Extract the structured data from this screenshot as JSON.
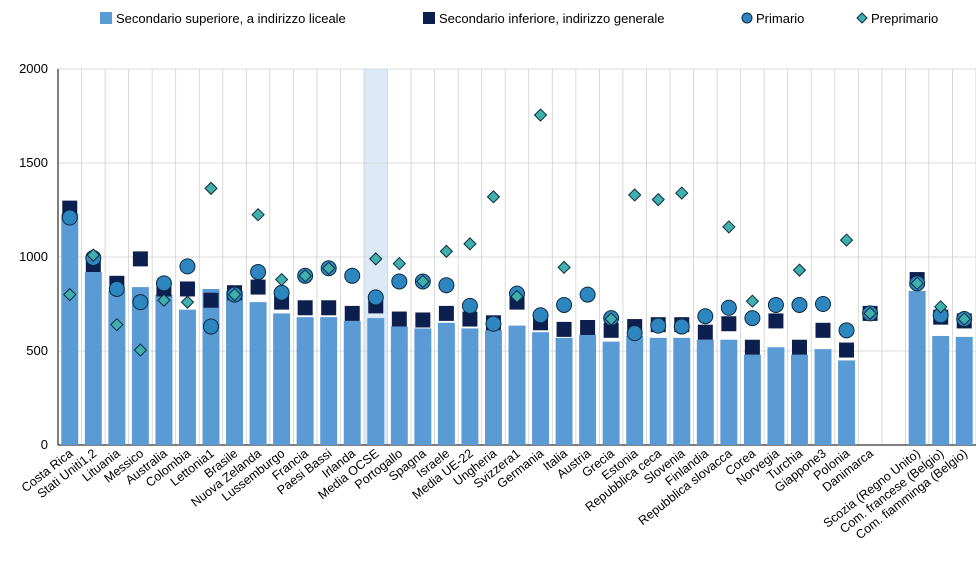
{
  "chart_data": {
    "type": "bar",
    "ylim": [
      0,
      2000
    ],
    "yticks": [
      0,
      500,
      1000,
      1500,
      2000
    ],
    "highlight_category": "Media OCSE",
    "colors": {
      "upper": "#5b9bd5",
      "lower": "#0d1f4f",
      "primary": "#2e86c1",
      "preprimary": "#3fb0ac",
      "highlight": "#dce9f6",
      "grid": "#d0d0d0"
    },
    "categories": [
      "Costa Rica",
      "Stati Uniti1,2",
      "Lituania",
      "Messico",
      "Australia",
      "Colombia",
      "Lettonia1",
      "Brasile",
      "Nuova Zelanda",
      "Lussemburgo",
      "Francia",
      "Paesi Bassi",
      "Irlanda",
      "Media OCSE",
      "Portogallo",
      "Spagna",
      "Israele",
      "Media UE-22",
      "Ungheria",
      "Svizzera1",
      "Germania",
      "Italia",
      "Austria",
      "Grecia",
      "Estonia",
      "Repubblica ceca",
      "Slovenia",
      "Finlandia",
      "Repubblica slovacca",
      "Corea",
      "Norvegia",
      "Turchia",
      "Giappone3",
      "Polonia",
      "Danimarca",
      "",
      "Scozia (Regno Unito)",
      "Com. francese (Belgio)",
      "Com. fiamminga (Belgio)"
    ],
    "series": [
      {
        "name": "Secondario superiore, a indirizzo liceale",
        "kind": "bar",
        "values": [
          1230,
          920,
          820,
          840,
          800,
          720,
          830,
          820,
          760,
          700,
          680,
          680,
          660,
          675,
          630,
          620,
          650,
          620,
          610,
          635,
          600,
          570,
          585,
          550,
          580,
          570,
          570,
          560,
          560,
          480,
          520,
          480,
          510,
          450,
          null,
          null,
          820,
          580,
          575
        ]
      },
      {
        "name": "Secondario inferiore, indirizzo generale",
        "kind": "square",
        "values": [
          1260,
          960,
          860,
          990,
          830,
          830,
          770,
          810,
          840,
          760,
          730,
          730,
          700,
          740,
          670,
          665,
          700,
          670,
          650,
          760,
          650,
          615,
          625,
          610,
          630,
          640,
          640,
          600,
          645,
          520,
          660,
          520,
          610,
          505,
          700,
          null,
          880,
          680,
          660
        ]
      },
      {
        "name": "Primario",
        "kind": "circle",
        "values": [
          1210,
          995,
          830,
          760,
          860,
          950,
          630,
          800,
          920,
          810,
          900,
          940,
          900,
          785,
          870,
          870,
          850,
          740,
          645,
          805,
          690,
          745,
          800,
          675,
          595,
          635,
          630,
          685,
          730,
          675,
          745,
          745,
          750,
          610,
          700,
          null,
          860,
          690,
          670
        ]
      },
      {
        "name": "Preprimario",
        "kind": "diamond",
        "values": [
          800,
          1010,
          640,
          505,
          770,
          760,
          1365,
          800,
          1225,
          880,
          900,
          940,
          null,
          990,
          965,
          870,
          1030,
          1070,
          1320,
          790,
          1755,
          945,
          null,
          670,
          1330,
          1305,
          1340,
          null,
          1160,
          765,
          null,
          930,
          null,
          1090,
          700,
          null,
          860,
          735,
          670
        ]
      }
    ]
  }
}
